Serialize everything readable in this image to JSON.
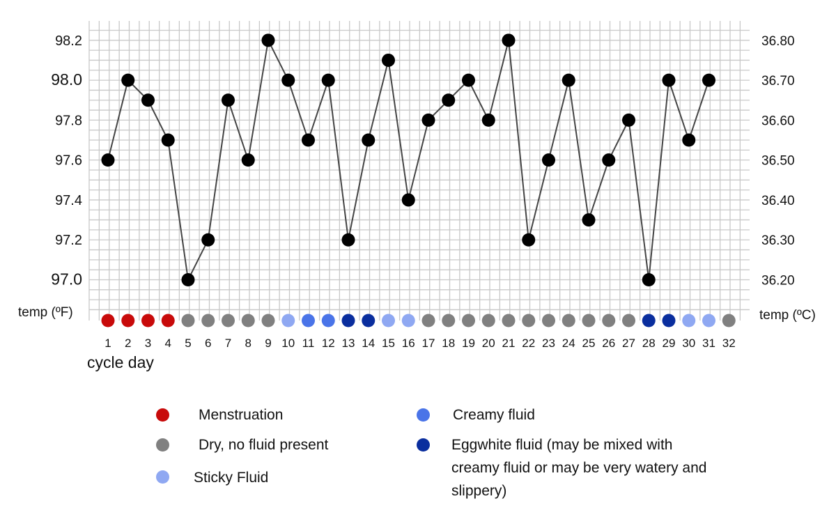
{
  "chart_data": {
    "type": "line",
    "xlabel": "cycle day",
    "ylabel_left": "temp (ºF)",
    "ylabel_right": "temp (ºC)",
    "ylim_f": [
      96.9,
      98.3
    ],
    "x": [
      1,
      2,
      3,
      4,
      5,
      6,
      7,
      8,
      9,
      10,
      11,
      12,
      13,
      14,
      15,
      16,
      17,
      18,
      19,
      20,
      21,
      22,
      23,
      24,
      25,
      26,
      27,
      28,
      29,
      30,
      31,
      32
    ],
    "temps_f": [
      97.6,
      98.0,
      97.9,
      97.7,
      97.0,
      97.2,
      97.9,
      97.6,
      98.2,
      98.0,
      97.7,
      98.0,
      97.2,
      97.7,
      98.1,
      97.4,
      97.8,
      97.9,
      98.0,
      97.8,
      98.2,
      97.2,
      97.6,
      98.0,
      97.3,
      97.6,
      97.8,
      97.0,
      98.0,
      97.7,
      98.0,
      null
    ],
    "yticks_left": [
      "97.0",
      "97.2",
      "97.4",
      "97.6",
      "97.8",
      "98.0",
      "98.2"
    ],
    "yticks_right": [
      "36.20",
      "36.30",
      "36.40",
      "36.50",
      "36.60",
      "36.70",
      "36.80"
    ],
    "fluid_by_day": [
      "menstruation",
      "menstruation",
      "menstruation",
      "menstruation",
      "dry",
      "dry",
      "dry",
      "dry",
      "dry",
      "sticky",
      "creamy",
      "creamy",
      "eggwhite",
      "eggwhite",
      "sticky",
      "sticky",
      "dry",
      "dry",
      "dry",
      "dry",
      "dry",
      "dry",
      "dry",
      "dry",
      "dry",
      "dry",
      "dry",
      "eggwhite",
      "eggwhite",
      "sticky",
      "sticky",
      "dry"
    ],
    "grid": true,
    "line_color": "#444444",
    "point_color": "#000000"
  },
  "legend": {
    "items": [
      {
        "key": "menstruation",
        "label": "Menstruation",
        "color": "#c80a0a"
      },
      {
        "key": "dry",
        "label": "Dry, no fluid present",
        "color": "#808080"
      },
      {
        "key": "sticky",
        "label": "Sticky Fluid",
        "color": "#8fa8f2"
      },
      {
        "key": "creamy",
        "label": "Creamy fluid",
        "color": "#4a74e8"
      },
      {
        "key": "eggwhite",
        "label": "Eggwhite fluid (may be mixed with creamy fluid or may be very watery and slippery)",
        "color": "#0a2e9e"
      }
    ]
  }
}
